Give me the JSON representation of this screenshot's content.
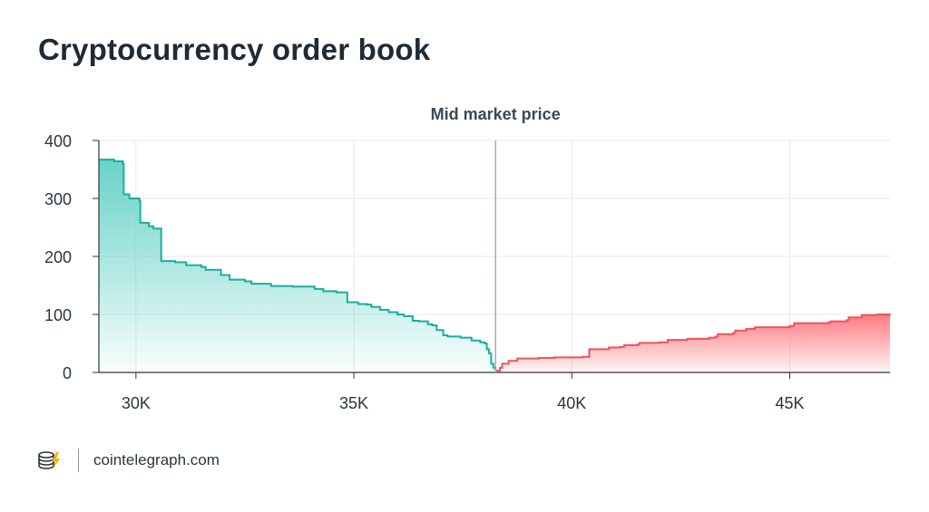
{
  "title": "Cryptocurrency order book",
  "footer": {
    "site": "cointelegraph.com",
    "logo_icon": "cointelegraph-logo-icon"
  },
  "colors": {
    "bid": "#1aae9f",
    "bid_fill_top": "#5fd0c4",
    "ask": "#f0525c",
    "ask_fill_top": "#ff7a82",
    "grid": "#e6eaee",
    "axis": "#2a3640",
    "mid_line": "#9aa8b3"
  },
  "chart_data": {
    "type": "area",
    "title": "",
    "xlabel": "",
    "ylabel": "",
    "xlim": [
      29150,
      47300
    ],
    "ylim": [
      0,
      400
    ],
    "x_ticks": [
      30000,
      35000,
      40000,
      45000
    ],
    "x_tick_labels": [
      "30K",
      "35K",
      "40K",
      "45K"
    ],
    "y_ticks": [
      0,
      100,
      200,
      300,
      400
    ],
    "y_tick_labels": [
      "0",
      "100",
      "200",
      "300",
      "400"
    ],
    "grid": true,
    "annotation": {
      "label": "Mid market price",
      "x": 38250
    },
    "series": [
      {
        "side": "bid",
        "points": [
          [
            29150,
            367
          ],
          [
            29500,
            364
          ],
          [
            29700,
            360
          ],
          [
            29720,
            307
          ],
          [
            29850,
            300
          ],
          [
            30080,
            296
          ],
          [
            30100,
            258
          ],
          [
            30300,
            252
          ],
          [
            30400,
            248
          ],
          [
            30560,
            248
          ],
          [
            30580,
            192
          ],
          [
            30900,
            190
          ],
          [
            31100,
            190
          ],
          [
            31150,
            185
          ],
          [
            31500,
            182
          ],
          [
            31600,
            177
          ],
          [
            31900,
            177
          ],
          [
            31950,
            168
          ],
          [
            32100,
            168
          ],
          [
            32150,
            160
          ],
          [
            32500,
            157
          ],
          [
            32600,
            157
          ],
          [
            32650,
            153
          ],
          [
            33050,
            153
          ],
          [
            33100,
            149
          ],
          [
            33600,
            148
          ],
          [
            34000,
            148
          ],
          [
            34100,
            144
          ],
          [
            34300,
            140
          ],
          [
            34600,
            138
          ],
          [
            34800,
            138
          ],
          [
            34850,
            121
          ],
          [
            35000,
            121
          ],
          [
            35100,
            118
          ],
          [
            35300,
            117
          ],
          [
            35400,
            113
          ],
          [
            35600,
            108
          ],
          [
            35800,
            104
          ],
          [
            36000,
            100
          ],
          [
            36150,
            97
          ],
          [
            36300,
            97
          ],
          [
            36350,
            89
          ],
          [
            36500,
            88
          ],
          [
            36700,
            83
          ],
          [
            36800,
            81
          ],
          [
            36900,
            73
          ],
          [
            37050,
            64
          ],
          [
            37150,
            62
          ],
          [
            37450,
            60
          ],
          [
            37700,
            55
          ],
          [
            37850,
            55
          ],
          [
            37900,
            52
          ],
          [
            38000,
            50
          ],
          [
            38050,
            40
          ],
          [
            38100,
            33
          ],
          [
            38150,
            15
          ],
          [
            38200,
            8
          ],
          [
            38250,
            5
          ]
        ]
      },
      {
        "side": "ask",
        "points": [
          [
            38250,
            3
          ],
          [
            38350,
            8
          ],
          [
            38400,
            15
          ],
          [
            38550,
            20
          ],
          [
            38750,
            24
          ],
          [
            38950,
            24
          ],
          [
            39250,
            25
          ],
          [
            39600,
            26
          ],
          [
            40000,
            26
          ],
          [
            40250,
            27
          ],
          [
            40400,
            40
          ],
          [
            40800,
            40
          ],
          [
            40850,
            43
          ],
          [
            41100,
            44
          ],
          [
            41200,
            47
          ],
          [
            41500,
            48
          ],
          [
            41550,
            51
          ],
          [
            42000,
            52
          ],
          [
            42200,
            56
          ],
          [
            42650,
            58
          ],
          [
            43150,
            60
          ],
          [
            43300,
            62
          ],
          [
            43350,
            66
          ],
          [
            43700,
            68
          ],
          [
            43750,
            72
          ],
          [
            44000,
            75
          ],
          [
            44200,
            78
          ],
          [
            44750,
            78
          ],
          [
            45000,
            80
          ],
          [
            45100,
            85
          ],
          [
            45900,
            87
          ],
          [
            45950,
            88
          ],
          [
            46300,
            90
          ],
          [
            46350,
            95
          ],
          [
            46600,
            95
          ],
          [
            46650,
            99
          ],
          [
            47000,
            100
          ],
          [
            47300,
            101
          ]
        ]
      }
    ]
  }
}
